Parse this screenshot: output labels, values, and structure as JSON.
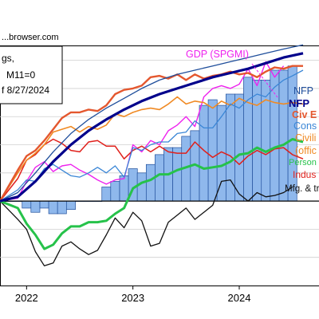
{
  "source_text": "...browser.com",
  "legend_box": {
    "line1": "gs,",
    "line2": "M11=0",
    "line3": "f 8/27/2024"
  },
  "colors": {
    "nfp_early": "#1f4e9b",
    "nfp_bench": "#00008b",
    "civ_emp_adj": "#e4572e",
    "consumption": "#3a86d6",
    "civilian_emp": "#f08a24",
    "personal_income": "#26c24a",
    "industrial_prod": "#e0201b",
    "mfg_trade_sales": "#111111",
    "gdp_spgmi": "#ee22ee",
    "gdp_bar_fill": "#8fb8ec",
    "gdp_bar_stroke": "#1f4e9b"
  },
  "chart_data": {
    "type": "line",
    "title": "",
    "xlabel": "",
    "ylabel": "",
    "x_tick_labels": [
      "2022",
      "2023",
      "2024"
    ],
    "x_ticks": [
      2022.0,
      2023.0,
      2024.0
    ],
    "xlim": [
      2021.75,
      2024.75
    ],
    "ylim": [
      -6,
      11
    ],
    "baseline": 0,
    "grid": "horizontal",
    "bar_series": {
      "name": "GDP (SPGMI)",
      "x": [
        2021.833,
        2021.917,
        2022.0,
        2022.083,
        2022.167,
        2022.25,
        2022.333,
        2022.417,
        2022.5,
        2022.583,
        2022.667,
        2022.75,
        2022.833,
        2022.917,
        2023.0,
        2023.083,
        2023.167,
        2023.25,
        2023.333,
        2023.417,
        2023.5,
        2023.583,
        2023.667,
        2023.75,
        2023.833,
        2023.917,
        2024.0,
        2024.083,
        2024.167,
        2024.25,
        2024.333,
        2024.417,
        2024.5
      ],
      "values": [
        0.0,
        0.0,
        -0.5,
        -0.8,
        -0.5,
        -0.9,
        -0.9,
        -0.6,
        0.0,
        0.0,
        0.0,
        1.0,
        1.4,
        1.8,
        2.3,
        2.0,
        2.6,
        3.3,
        3.8,
        3.8,
        4.6,
        5.0,
        6.8,
        7.2,
        6.8,
        7.6,
        7.6,
        8.8,
        8.6,
        8.6,
        9.3,
        9.3,
        9.6
      ]
    },
    "series": [
      {
        "name": "NFP",
        "label": "NFP",
        "color_key": "nfp_early",
        "x": [
          2021.75,
          2021.917,
          2022.083,
          2022.25,
          2022.417,
          2022.583,
          2022.75,
          2022.917,
          2023.083,
          2023.25,
          2023.417,
          2023.583,
          2023.75,
          2023.917,
          2024.083,
          2024.25,
          2024.417,
          2024.6
        ],
        "values": [
          0.0,
          0.6,
          2.0,
          3.5,
          4.8,
          5.8,
          6.6,
          7.3,
          8.0,
          8.6,
          9.0,
          9.3,
          9.6,
          9.9,
          10.2,
          10.5,
          10.8,
          11.1
        ]
      },
      {
        "name": "NFP (bench)",
        "label": "NFP",
        "color_key": "nfp_bench",
        "x": [
          2021.75,
          2021.917,
          2022.083,
          2022.25,
          2022.417,
          2022.583,
          2022.75,
          2022.917,
          2023.083,
          2023.25,
          2023.417,
          2023.583,
          2023.75,
          2023.917,
          2024.083,
          2024.25,
          2024.417,
          2024.6
        ],
        "values": [
          0.0,
          0.3,
          1.4,
          2.8,
          4.0,
          5.0,
          5.8,
          6.5,
          7.1,
          7.6,
          8.0,
          8.4,
          8.8,
          9.1,
          9.4,
          9.8,
          10.2,
          10.5
        ]
      },
      {
        "name": "Civ Emp (adj)",
        "label": "Civ E",
        "color_key": "civ_emp_adj",
        "x": [
          2021.75,
          2021.917,
          2022.0,
          2022.083,
          2022.167,
          2022.25,
          2022.333,
          2022.417,
          2022.5,
          2022.583,
          2022.667,
          2022.75,
          2022.833,
          2022.917,
          2023.0,
          2023.083,
          2023.167,
          2023.25,
          2023.333,
          2023.417,
          2023.5,
          2023.583,
          2023.667,
          2023.75,
          2023.833,
          2023.917,
          2024.0,
          2024.083,
          2024.167,
          2024.25,
          2024.333,
          2024.417,
          2024.5,
          2024.6
        ],
        "values": [
          0.0,
          2.2,
          3.2,
          3.6,
          4.3,
          5.1,
          5.9,
          6.3,
          6.3,
          6.5,
          6.4,
          6.8,
          7.6,
          7.9,
          8.0,
          8.2,
          8.8,
          8.9,
          8.7,
          9.0,
          8.6,
          9.0,
          8.7,
          8.9,
          9.0,
          9.2,
          9.0,
          9.1,
          8.8,
          9.2,
          9.5,
          9.4,
          9.6,
          9.6
        ]
      },
      {
        "name": "Consumption",
        "label": "Cons",
        "color_key": "consumption",
        "x": [
          2021.75,
          2021.917,
          2022.0,
          2022.083,
          2022.167,
          2022.25,
          2022.333,
          2022.417,
          2022.5,
          2022.583,
          2022.667,
          2022.75,
          2022.833,
          2022.917,
          2023.0,
          2023.083,
          2023.167,
          2023.25,
          2023.333,
          2023.417,
          2023.5,
          2023.583,
          2023.667,
          2023.75,
          2023.833,
          2023.917,
          2024.0,
          2024.083,
          2024.167,
          2024.25,
          2024.333,
          2024.417,
          2024.5,
          2024.6
        ],
        "values": [
          0.0,
          0.8,
          1.5,
          1.4,
          2.3,
          2.6,
          2.2,
          1.8,
          1.7,
          2.0,
          2.4,
          2.0,
          2.5,
          1.7,
          3.8,
          3.6,
          4.0,
          4.2,
          4.2,
          4.8,
          4.9,
          5.7,
          5.2,
          5.2,
          6.0,
          6.9,
          6.6,
          7.2,
          7.6,
          7.4,
          8.1,
          8.6,
          8.9,
          9.3
        ]
      },
      {
        "name": "Civilian employment",
        "label": "Civili",
        "color_key": "civilian_emp",
        "x": [
          2021.75,
          2021.917,
          2022.0,
          2022.083,
          2022.167,
          2022.25,
          2022.333,
          2022.417,
          2022.5,
          2022.583,
          2022.667,
          2022.75,
          2022.833,
          2022.917,
          2023.0,
          2023.083,
          2023.167,
          2023.25,
          2023.333,
          2023.417,
          2023.5,
          2023.583,
          2023.667,
          2023.75,
          2023.833,
          2023.917,
          2024.0,
          2024.083,
          2024.167,
          2024.25,
          2024.333,
          2024.417,
          2024.5,
          2024.6
        ],
        "values": [
          0.0,
          2.0,
          2.9,
          3.4,
          4.0,
          4.9,
          5.1,
          5.3,
          4.9,
          5.3,
          5.1,
          5.4,
          6.2,
          6.0,
          6.3,
          6.5,
          6.6,
          6.5,
          6.9,
          7.4,
          6.9,
          7.1,
          7.0,
          6.6,
          7.1,
          6.8,
          7.3,
          7.0,
          6.8,
          7.2,
          7.0,
          6.9,
          7.0,
          6.9
        ]
      },
      {
        "name": "Personal income",
        "label": "Person",
        "color_key": "personal_income",
        "x": [
          2021.75,
          2021.917,
          2022.0,
          2022.083,
          2022.167,
          2022.25,
          2022.333,
          2022.417,
          2022.5,
          2022.583,
          2022.667,
          2022.75,
          2022.833,
          2022.917,
          2023.0,
          2023.083,
          2023.167,
          2023.25,
          2023.333,
          2023.417,
          2023.5,
          2023.583,
          2023.667,
          2023.75,
          2023.833,
          2023.917,
          2024.0,
          2024.083,
          2024.167,
          2024.25,
          2024.333,
          2024.417,
          2024.5,
          2024.6
        ],
        "values": [
          0.0,
          -0.5,
          -1.6,
          -2.4,
          -3.4,
          -3.1,
          -2.3,
          -1.8,
          -1.8,
          -1.5,
          -1.5,
          -1.4,
          -0.9,
          -0.5,
          0.9,
          1.3,
          1.5,
          1.9,
          1.9,
          2.2,
          2.4,
          2.6,
          2.3,
          2.4,
          2.5,
          2.8,
          3.3,
          3.4,
          3.8,
          3.5,
          3.8,
          4.0,
          4.4,
          4.2
        ]
      },
      {
        "name": "Industrial production",
        "label": "Indus",
        "color_key": "industrial_prod",
        "x": [
          2021.75,
          2021.917,
          2022.0,
          2022.083,
          2022.167,
          2022.25,
          2022.333,
          2022.417,
          2022.5,
          2022.583,
          2022.667,
          2022.75,
          2022.833,
          2022.917,
          2023.0,
          2023.083,
          2023.167,
          2023.25,
          2023.333,
          2023.417,
          2023.5,
          2023.583,
          2023.667,
          2023.75,
          2023.833,
          2023.917,
          2024.0,
          2024.083,
          2024.167,
          2024.25,
          2024.333,
          2024.417,
          2024.5,
          2024.6
        ],
        "values": [
          0.0,
          1.6,
          2.9,
          3.3,
          4.0,
          4.4,
          4.1,
          3.6,
          3.5,
          4.2,
          4.3,
          3.9,
          3.9,
          3.0,
          3.6,
          3.9,
          3.5,
          3.9,
          3.5,
          3.4,
          3.4,
          4.2,
          3.6,
          3.1,
          3.5,
          3.2,
          2.6,
          3.2,
          3.6,
          3.3,
          3.7,
          3.8,
          3.3,
          3.0
        ]
      },
      {
        "name": "Mfg. & trade sales",
        "label": "Mfg. & tr",
        "color_key": "mfg_trade_sales",
        "x": [
          2021.75,
          2021.917,
          2022.0,
          2022.083,
          2022.167,
          2022.25,
          2022.333,
          2022.417,
          2022.5,
          2022.583,
          2022.667,
          2022.75,
          2022.833,
          2022.917,
          2023.0,
          2023.083,
          2023.167,
          2023.25,
          2023.333,
          2023.417,
          2023.5,
          2023.583,
          2023.667,
          2023.75,
          2023.833,
          2023.917,
          2024.0,
          2024.083,
          2024.167,
          2024.25,
          2024.333,
          2024.417,
          2024.5
        ],
        "values": [
          0.0,
          -1.3,
          -2.0,
          -3.6,
          -4.6,
          -4.4,
          -3.2,
          -2.9,
          -3.4,
          -3.8,
          -3.5,
          -2.4,
          -1.2,
          -1.9,
          -0.8,
          -1.4,
          -3.2,
          -3.0,
          -1.5,
          -1.0,
          -0.5,
          -1.3,
          -0.8,
          -0.3,
          1.4,
          1.5,
          0.5,
          0.0,
          0.6,
          0.3,
          0.4,
          0.6,
          1.0
        ]
      },
      {
        "name": "GDP (SPGMI) monthly",
        "label": "",
        "color_key": "gdp_spgmi",
        "x": [
          2021.75,
          2021.917,
          2022.0,
          2022.083,
          2022.167,
          2022.25,
          2022.333,
          2022.417,
          2022.5,
          2022.583,
          2022.667,
          2022.75,
          2022.833,
          2022.917,
          2023.0,
          2023.083,
          2023.167,
          2023.25,
          2023.333,
          2023.417,
          2023.5,
          2023.583,
          2023.667,
          2023.75,
          2023.833,
          2023.917,
          2024.0,
          2024.083,
          2024.167,
          2024.25,
          2024.333,
          2024.417
        ],
        "values": [
          0.0,
          0.2,
          1.4,
          2.4,
          2.8,
          2.1,
          2.5,
          2.6,
          2.2,
          1.9,
          1.5,
          1.2,
          1.5,
          1.6,
          4.0,
          3.5,
          4.3,
          4.0,
          5.0,
          5.4,
          6.0,
          5.3,
          7.4,
          8.0,
          8.2,
          8.0,
          8.3,
          9.4,
          8.2,
          9.9,
          8.8,
          9.6
        ]
      }
    ],
    "labels": {
      "gdp": "GDP (SPGMI)",
      "nfp_early": "NFP",
      "nfp_bench": "NFP",
      "civ_emp_adj": "Civ E",
      "consumption": "Cons",
      "civilian_emp": "Civili",
      "official": "(offic",
      "personal_income": "Person",
      "industrial_prod": "Indus",
      "mfg_trade_sales": "Mfg. & tr"
    }
  }
}
